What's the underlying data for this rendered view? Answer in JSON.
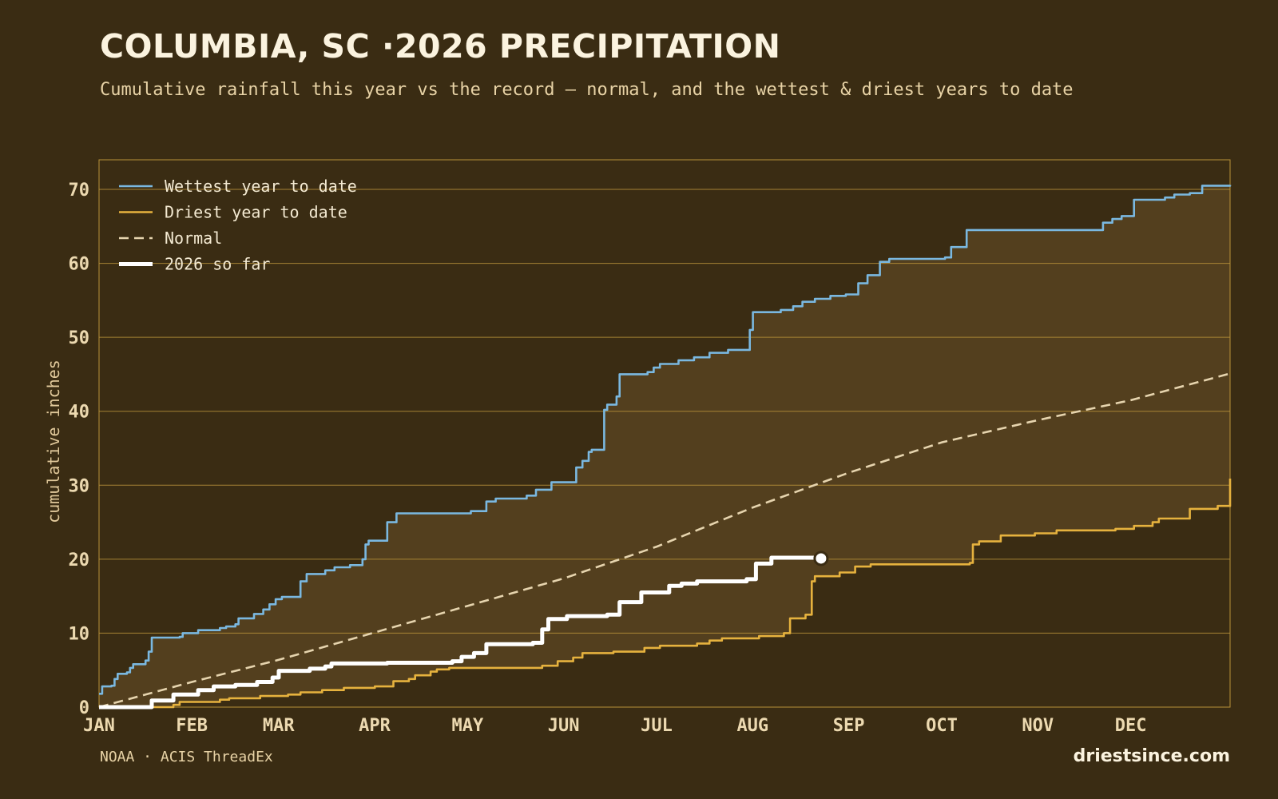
{
  "header": {
    "title": "COLUMBIA, SC ·2026 PRECIPITATION",
    "subtitle": "Cumulative rainfall this year vs the record — normal, and the wettest & driest years to date"
  },
  "footer": {
    "source": "NOAA · ACIS ThreadEx",
    "brand": "driestsince.com"
  },
  "colors": {
    "background": "#3a2c13",
    "band": "#533f1e",
    "grid": "#b8923a",
    "wettest": "#7ab8e0",
    "driest": "#e6b23e",
    "normal": "#e6d4ae",
    "current": "#ffffff"
  },
  "chart_data": {
    "type": "line",
    "xlabel": "",
    "ylabel": "cumulative inches",
    "ylim": [
      0,
      74
    ],
    "yticks": [
      0,
      10,
      20,
      30,
      40,
      50,
      60,
      70
    ],
    "x_unit": "day of year",
    "xlim": [
      1,
      366
    ],
    "month_ticks": [
      {
        "label": "JAN",
        "day": 1
      },
      {
        "label": "FEB",
        "day": 32
      },
      {
        "label": "MAR",
        "day": 60
      },
      {
        "label": "APR",
        "day": 91
      },
      {
        "label": "MAY",
        "day": 121
      },
      {
        "label": "JUN",
        "day": 152
      },
      {
        "label": "JUL",
        "day": 182
      },
      {
        "label": "AUG",
        "day": 213
      },
      {
        "label": "SEP",
        "day": 244
      },
      {
        "label": "OCT",
        "day": 274
      },
      {
        "label": "NOV",
        "day": 305
      },
      {
        "label": "DEC",
        "day": 335
      }
    ],
    "grid": true,
    "legend_position": "top-left",
    "series": [
      {
        "name": "Wettest year to date",
        "style": "step",
        "points": [
          [
            1,
            1.8
          ],
          [
            2,
            2.8
          ],
          [
            5,
            2.9
          ],
          [
            6,
            3.8
          ],
          [
            7,
            4.5
          ],
          [
            10,
            4.7
          ],
          [
            11,
            5.3
          ],
          [
            12,
            5.8
          ],
          [
            16,
            6.3
          ],
          [
            17,
            7.5
          ],
          [
            18,
            9.4
          ],
          [
            27,
            9.5
          ],
          [
            28,
            10.0
          ],
          [
            33,
            10.4
          ],
          [
            40,
            10.7
          ],
          [
            42,
            10.9
          ],
          [
            45,
            11.2
          ],
          [
            46,
            12.0
          ],
          [
            51,
            12.6
          ],
          [
            54,
            13.2
          ],
          [
            56,
            13.9
          ],
          [
            58,
            14.6
          ],
          [
            60,
            14.9
          ],
          [
            66,
            17.0
          ],
          [
            68,
            18.0
          ],
          [
            74,
            18.5
          ],
          [
            77,
            18.9
          ],
          [
            82,
            19.2
          ],
          [
            86,
            20.0
          ],
          [
            87,
            22.0
          ],
          [
            88,
            22.5
          ],
          [
            94,
            25.0
          ],
          [
            97,
            26.2
          ],
          [
            121,
            26.5
          ],
          [
            126,
            27.8
          ],
          [
            129,
            28.2
          ],
          [
            139,
            28.6
          ],
          [
            142,
            29.4
          ],
          [
            147,
            30.4
          ],
          [
            155,
            32.4
          ],
          [
            157,
            33.3
          ],
          [
            159,
            34.5
          ],
          [
            160,
            34.8
          ],
          [
            164,
            40.2
          ],
          [
            165,
            40.9
          ],
          [
            168,
            42.0
          ],
          [
            169,
            45.0
          ],
          [
            178,
            45.3
          ],
          [
            180,
            45.9
          ],
          [
            182,
            46.4
          ],
          [
            188,
            46.9
          ],
          [
            193,
            47.3
          ],
          [
            198,
            47.9
          ],
          [
            204,
            48.3
          ],
          [
            211,
            51.0
          ],
          [
            212,
            53.4
          ],
          [
            221,
            53.7
          ],
          [
            225,
            54.2
          ],
          [
            228,
            54.8
          ],
          [
            232,
            55.2
          ],
          [
            237,
            55.6
          ],
          [
            242,
            55.8
          ],
          [
            246,
            57.3
          ],
          [
            249,
            58.4
          ],
          [
            253,
            60.2
          ],
          [
            256,
            60.6
          ],
          [
            274,
            60.8
          ],
          [
            276,
            62.2
          ],
          [
            281,
            64.5
          ],
          [
            325,
            65.5
          ],
          [
            328,
            66.0
          ],
          [
            331,
            66.4
          ],
          [
            335,
            68.6
          ],
          [
            345,
            68.9
          ],
          [
            348,
            69.3
          ],
          [
            353,
            69.5
          ],
          [
            357,
            70.5
          ],
          [
            366,
            70.6
          ]
        ]
      },
      {
        "name": "Driest year to date",
        "style": "step",
        "points": [
          [
            1,
            0.0
          ],
          [
            19,
            0.0
          ],
          [
            25,
            0.3
          ],
          [
            27,
            0.7
          ],
          [
            40,
            1.0
          ],
          [
            43,
            1.2
          ],
          [
            53,
            1.5
          ],
          [
            62,
            1.7
          ],
          [
            66,
            2.0
          ],
          [
            73,
            2.3
          ],
          [
            80,
            2.6
          ],
          [
            90,
            2.8
          ],
          [
            96,
            3.5
          ],
          [
            101,
            3.8
          ],
          [
            103,
            4.3
          ],
          [
            108,
            4.8
          ],
          [
            110,
            5.1
          ],
          [
            114,
            5.3
          ],
          [
            144,
            5.6
          ],
          [
            149,
            6.2
          ],
          [
            154,
            6.7
          ],
          [
            157,
            7.3
          ],
          [
            167,
            7.5
          ],
          [
            177,
            8.0
          ],
          [
            182,
            8.3
          ],
          [
            194,
            8.6
          ],
          [
            198,
            9.0
          ],
          [
            202,
            9.3
          ],
          [
            214,
            9.6
          ],
          [
            222,
            10.0
          ],
          [
            224,
            12.0
          ],
          [
            229,
            12.5
          ],
          [
            231,
            17.0
          ],
          [
            232,
            17.7
          ],
          [
            240,
            18.2
          ],
          [
            245,
            19.0
          ],
          [
            250,
            19.3
          ],
          [
            282,
            19.5
          ],
          [
            283,
            22.0
          ],
          [
            285,
            22.4
          ],
          [
            292,
            23.2
          ],
          [
            303,
            23.5
          ],
          [
            310,
            23.9
          ],
          [
            329,
            24.1
          ],
          [
            335,
            24.5
          ],
          [
            341,
            25.0
          ],
          [
            343,
            25.5
          ],
          [
            353,
            26.8
          ],
          [
            362,
            27.2
          ],
          [
            366,
            30.9
          ]
        ]
      },
      {
        "name": "Normal",
        "style": "dashed",
        "points": [
          [
            1,
            0.0
          ],
          [
            31,
            3.4
          ],
          [
            59,
            6.4
          ],
          [
            90,
            10.1
          ],
          [
            120,
            13.7
          ],
          [
            151,
            17.4
          ],
          [
            181,
            21.7
          ],
          [
            212,
            27.0
          ],
          [
            243,
            31.7
          ],
          [
            273,
            35.8
          ],
          [
            304,
            38.8
          ],
          [
            334,
            41.5
          ],
          [
            366,
            45.1
          ]
        ]
      },
      {
        "name": "2026 so far",
        "style": "step",
        "points": [
          [
            1,
            0.0
          ],
          [
            17,
            0.0
          ],
          [
            18,
            0.9
          ],
          [
            25,
            1.7
          ],
          [
            33,
            2.3
          ],
          [
            38,
            2.8
          ],
          [
            45,
            3.0
          ],
          [
            52,
            3.4
          ],
          [
            57,
            4.0
          ],
          [
            59,
            4.9
          ],
          [
            69,
            5.2
          ],
          [
            74,
            5.5
          ],
          [
            76,
            5.9
          ],
          [
            94,
            6.0
          ],
          [
            115,
            6.2
          ],
          [
            118,
            6.8
          ],
          [
            122,
            7.3
          ],
          [
            126,
            8.5
          ],
          [
            141,
            8.7
          ],
          [
            144,
            10.5
          ],
          [
            146,
            11.9
          ],
          [
            152,
            12.3
          ],
          [
            165,
            12.5
          ],
          [
            169,
            14.2
          ],
          [
            176,
            15.5
          ],
          [
            185,
            16.4
          ],
          [
            189,
            16.7
          ],
          [
            194,
            17.0
          ],
          [
            210,
            17.3
          ],
          [
            213,
            19.4
          ],
          [
            218,
            20.2
          ],
          [
            234,
            20.1
          ]
        ]
      }
    ]
  }
}
